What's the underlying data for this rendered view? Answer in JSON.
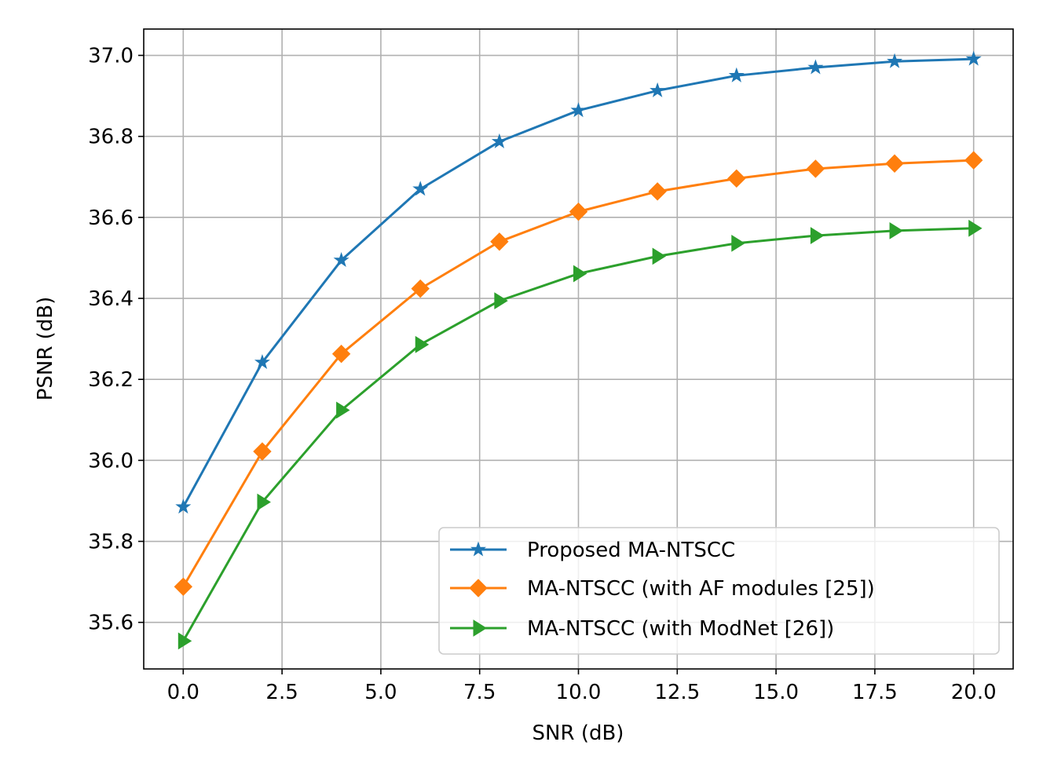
{
  "chart_data": {
    "type": "line",
    "title": "",
    "xlabel": "SNR (dB)",
    "ylabel": "PSNR (dB)",
    "xlim": [
      -1.0,
      21.0
    ],
    "ylim": [
      35.485,
      37.065
    ],
    "xticks": [
      0.0,
      2.5,
      5.0,
      7.5,
      10.0,
      12.5,
      15.0,
      17.5,
      20.0
    ],
    "xtick_labels": [
      "0.0",
      "2.5",
      "5.0",
      "7.5",
      "10.0",
      "12.5",
      "15.0",
      "17.5",
      "20.0"
    ],
    "yticks": [
      35.6,
      35.8,
      36.0,
      36.2,
      36.4,
      36.6,
      36.8,
      37.0
    ],
    "ytick_labels": [
      "35.6",
      "35.8",
      "36.0",
      "36.2",
      "36.4",
      "36.6",
      "36.8",
      "37.0"
    ],
    "grid": true,
    "legend_position": "lower-right",
    "x": [
      0,
      2,
      4,
      6,
      8,
      10,
      12,
      14,
      16,
      18,
      20
    ],
    "series": [
      {
        "name": "Proposed MA-NTSCC",
        "color": "#1f77b4",
        "marker": "star",
        "values": [
          35.885,
          36.242,
          36.494,
          36.67,
          36.787,
          36.864,
          36.913,
          36.95,
          36.97,
          36.985,
          36.991
        ]
      },
      {
        "name": "MA-NTSCC (with AF modules [25])",
        "color": "#ff7f0e",
        "marker": "diamond",
        "values": [
          35.688,
          36.022,
          36.263,
          36.424,
          36.54,
          36.614,
          36.664,
          36.696,
          36.72,
          36.733,
          36.741
        ]
      },
      {
        "name": "MA-NTSCC (with ModNet [26])",
        "color": "#2ca02c",
        "marker": "triangle-right",
        "values": [
          35.554,
          35.897,
          36.124,
          36.286,
          36.394,
          36.461,
          36.504,
          36.536,
          36.555,
          36.567,
          36.573
        ]
      }
    ]
  }
}
